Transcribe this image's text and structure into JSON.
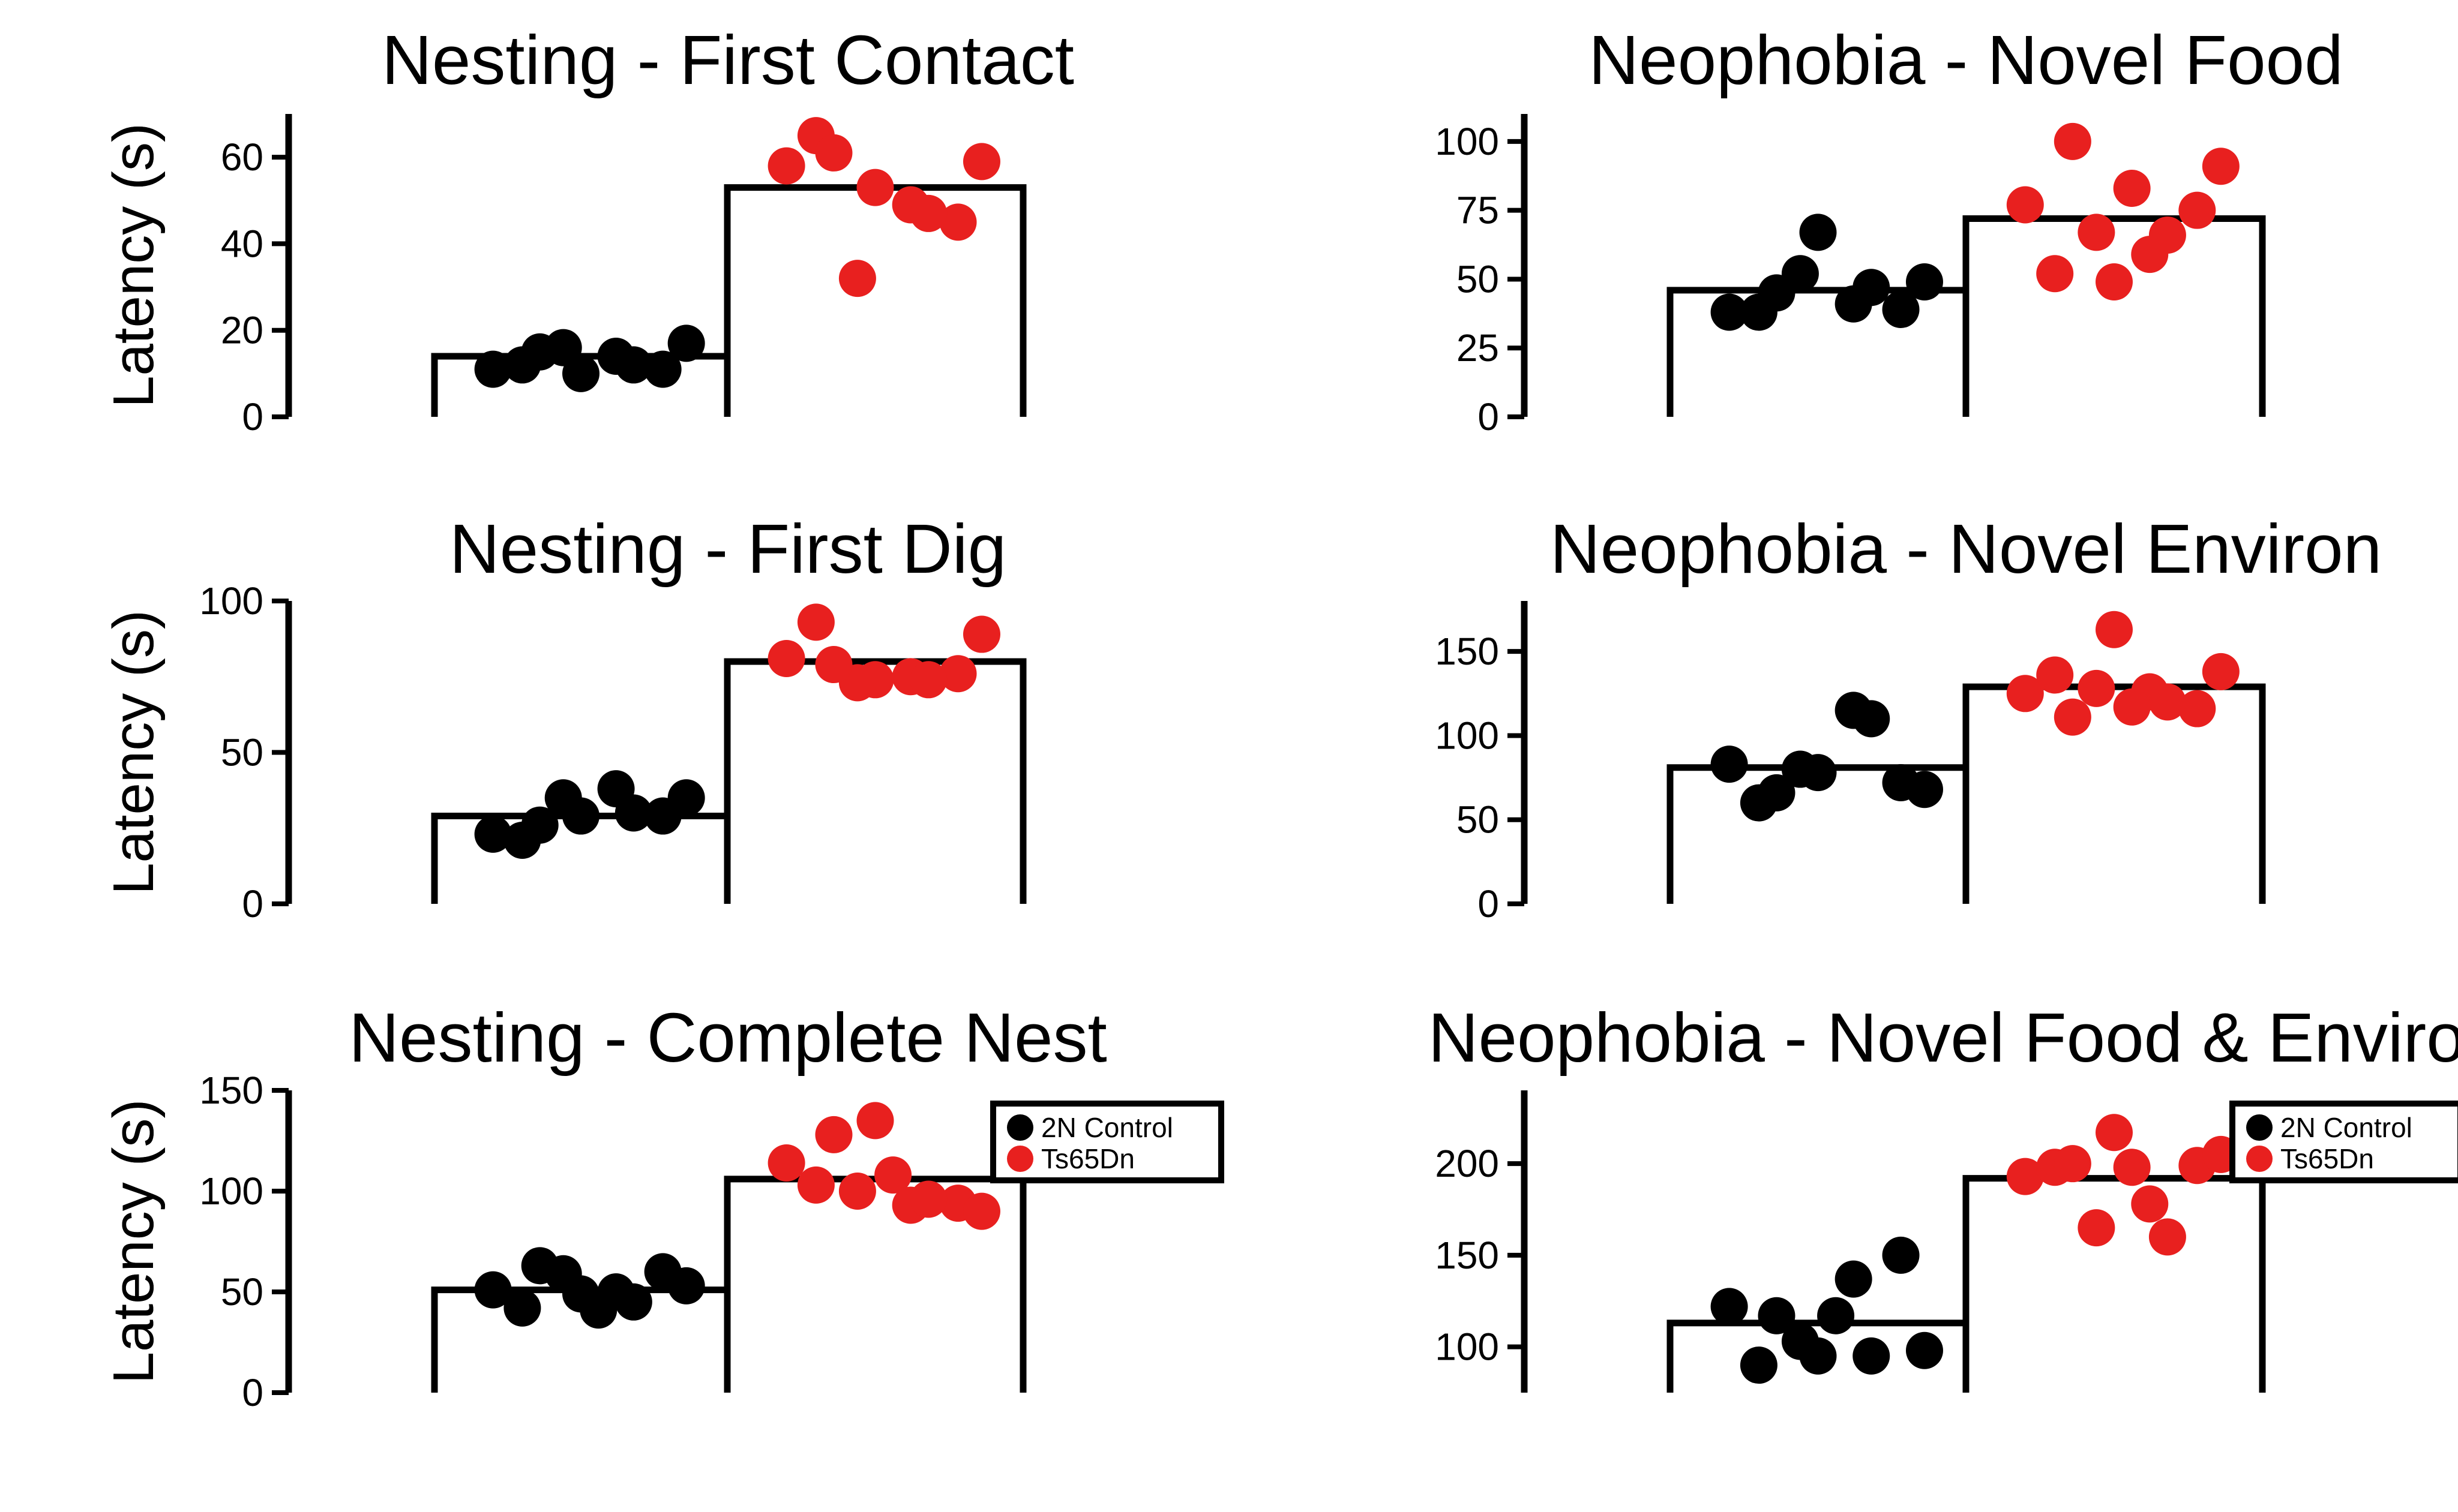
{
  "colors": {
    "control": "#000000",
    "ts65dn": "#e8201f",
    "axis": "#000000",
    "background": "#ffffff"
  },
  "chart_data": [
    {
      "type": "bar",
      "title": "Nesting - First Contact",
      "ylabel": "Latency (s)",
      "ylim": [
        0,
        70
      ],
      "yticks": [
        0,
        20,
        40,
        60
      ],
      "categories": [
        "2N Control",
        "Ts65Dn"
      ],
      "series": [
        {
          "name": "2N Control",
          "mean": 14,
          "points": [
            11,
            12,
            10,
            14,
            16,
            11,
            12,
            17,
            15
          ]
        },
        {
          "name": "Ts65Dn",
          "mean": 53,
          "points": [
            58,
            65,
            53,
            49,
            32,
            45,
            47,
            59,
            61
          ]
        }
      ],
      "legend": null
    },
    {
      "type": "bar",
      "title": "Neophobia - Novel Food",
      "ylabel": "Latency (s)",
      "ylim": [
        0,
        110
      ],
      "yticks": [
        0,
        25,
        50,
        75,
        100
      ],
      "categories": [
        "2N Control",
        "Ts65Dn"
      ],
      "series": [
        {
          "name": "2N Control",
          "mean": 46,
          "points": [
            38,
            38,
            67,
            41,
            52,
            39,
            47,
            49,
            45
          ]
        },
        {
          "name": "Ts65Dn",
          "mean": 72,
          "points": [
            77,
            52,
            49,
            59,
            67,
            75,
            66,
            91,
            100,
            83
          ]
        }
      ],
      "legend": null
    },
    {
      "type": "bar",
      "title": "Nesting - First Dig",
      "ylabel": "Latency (s)",
      "ylim": [
        0,
        100
      ],
      "yticks": [
        0,
        50,
        100
      ],
      "categories": [
        "2N Control",
        "Ts65Dn"
      ],
      "series": [
        {
          "name": "2N Control",
          "mean": 29,
          "points": [
            23,
            21,
            29,
            38,
            35,
            29,
            30,
            35,
            26
          ]
        },
        {
          "name": "Ts65Dn",
          "mean": 80,
          "points": [
            81,
            93,
            74,
            75,
            73,
            76,
            74,
            89,
            79
          ]
        }
      ],
      "legend": null
    },
    {
      "type": "bar",
      "title": "Neophobia - Novel Environ",
      "ylabel": "Latency (s)",
      "ylim": [
        0,
        180
      ],
      "yticks": [
        0,
        50,
        100,
        150
      ],
      "categories": [
        "2N Control",
        "Ts65Dn"
      ],
      "series": [
        {
          "name": "2N Control",
          "mean": 81,
          "points": [
            83,
            60,
            78,
            115,
            80,
            72,
            110,
            68,
            66
          ]
        },
        {
          "name": "Ts65Dn",
          "mean": 129,
          "points": [
            125,
            136,
            163,
            126,
            128,
            116,
            120,
            138,
            111,
            117
          ]
        }
      ],
      "legend": null
    },
    {
      "type": "bar",
      "title": "Nesting - Complete Nest",
      "ylabel": "Latency (s)",
      "ylim": [
        0,
        150
      ],
      "yticks": [
        0,
        50,
        100,
        150
      ],
      "categories": [
        "2N Control",
        "Ts65Dn"
      ],
      "series": [
        {
          "name": "2N Control",
          "mean": 51,
          "points": [
            51,
            42,
            49,
            50,
            59,
            60,
            45,
            53,
            63,
            41
          ]
        },
        {
          "name": "Ts65Dn",
          "mean": 106,
          "points": [
            114,
            103,
            135,
            93,
            100,
            94,
            96,
            90,
            128,
            108
          ]
        }
      ],
      "legend": {
        "position": "top-right",
        "entries": [
          "2N Control",
          "Ts65Dn"
        ]
      }
    },
    {
      "type": "bar",
      "title": "Neophobia - Novel Food & Environ",
      "ylabel": "Latency (s)",
      "ylim": [
        75,
        240
      ],
      "yticks": [
        100,
        150,
        200
      ],
      "categories": [
        "2N Control",
        "Ts65Dn"
      ],
      "series": [
        {
          "name": "2N Control",
          "mean": 113,
          "points": [
            122,
            90,
            95,
            137,
            103,
            150,
            95,
            98,
            117,
            117
          ]
        },
        {
          "name": "Ts65Dn",
          "mean": 192,
          "points": [
            193,
            198,
            217,
            178,
            165,
            199,
            160,
            205,
            200,
            198
          ]
        }
      ],
      "legend": {
        "position": "top-right",
        "entries": [
          "2N Control",
          "Ts65Dn"
        ]
      }
    }
  ]
}
